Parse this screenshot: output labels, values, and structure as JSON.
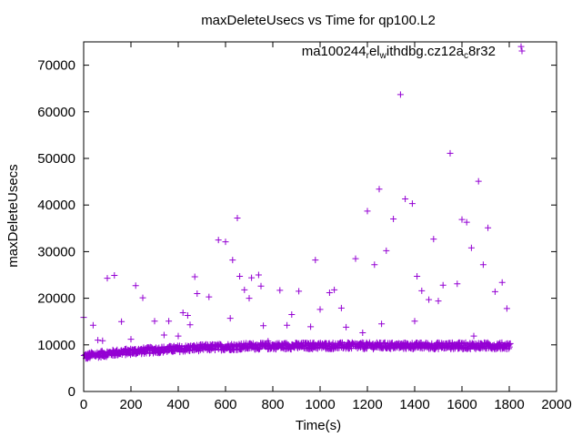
{
  "chart_data": {
    "type": "scatter",
    "title": "maxDeleteUsecs vs Time for qp100.L2",
    "xlabel": "Time(s)",
    "ylabel": "maxDeleteUsecs",
    "xlim": [
      0,
      2000
    ],
    "ylim": [
      0,
      75000
    ],
    "xticks": [
      0,
      200,
      400,
      600,
      800,
      1000,
      1200,
      1400,
      1600,
      1800,
      2000
    ],
    "yticks": [
      0,
      10000,
      20000,
      30000,
      40000,
      50000,
      60000,
      70000
    ],
    "grid": false,
    "marker": "+",
    "legend_position": "top-right",
    "series": [
      {
        "name": "ma100244_rel_withdbg.cz12a_c8r32",
        "legend_parts": [
          {
            "text": "ma100244",
            "sub": false
          },
          {
            "text": "r",
            "sub": true
          },
          {
            "text": "el",
            "sub": false
          },
          {
            "text": "w",
            "sub": true
          },
          {
            "text": "ithdbg.cz12a",
            "sub": false
          },
          {
            "text": "c",
            "sub": true
          },
          {
            "text": "8r32",
            "sub": false
          }
        ],
        "color": "#9400d3",
        "band": {
          "x_start": 0,
          "x_end": 1800,
          "x_step": 5,
          "profile": [
            [
              0,
              7500
            ],
            [
              50,
              7900
            ],
            [
              150,
              8400
            ],
            [
              300,
              8900
            ],
            [
              500,
              9400
            ],
            [
              700,
              9700
            ],
            [
              1000,
              9800
            ],
            [
              1800,
              9800
            ]
          ],
          "spread": 1400
        },
        "points": [
          [
            0,
            15900
          ],
          [
            40,
            14200
          ],
          [
            60,
            11000
          ],
          [
            80,
            10900
          ],
          [
            100,
            24300
          ],
          [
            130,
            24900
          ],
          [
            160,
            15000
          ],
          [
            200,
            11200
          ],
          [
            220,
            22700
          ],
          [
            250,
            20100
          ],
          [
            300,
            15100
          ],
          [
            340,
            12100
          ],
          [
            360,
            15100
          ],
          [
            400,
            11900
          ],
          [
            420,
            16900
          ],
          [
            440,
            16300
          ],
          [
            450,
            14300
          ],
          [
            470,
            24600
          ],
          [
            480,
            21000
          ],
          [
            530,
            20300
          ],
          [
            570,
            32500
          ],
          [
            600,
            32100
          ],
          [
            620,
            15700
          ],
          [
            630,
            28200
          ],
          [
            650,
            37200
          ],
          [
            660,
            24700
          ],
          [
            680,
            21800
          ],
          [
            700,
            20000
          ],
          [
            710,
            24400
          ],
          [
            740,
            25000
          ],
          [
            750,
            22600
          ],
          [
            760,
            14100
          ],
          [
            780,
            10800
          ],
          [
            830,
            21700
          ],
          [
            860,
            14200
          ],
          [
            880,
            16500
          ],
          [
            910,
            21500
          ],
          [
            960,
            13900
          ],
          [
            980,
            28200
          ],
          [
            1000,
            17600
          ],
          [
            1040,
            21200
          ],
          [
            1060,
            21800
          ],
          [
            1090,
            17900
          ],
          [
            1110,
            13800
          ],
          [
            1150,
            28500
          ],
          [
            1180,
            12600
          ],
          [
            1200,
            38700
          ],
          [
            1230,
            27200
          ],
          [
            1250,
            43400
          ],
          [
            1260,
            14500
          ],
          [
            1280,
            30200
          ],
          [
            1310,
            37000
          ],
          [
            1340,
            63700
          ],
          [
            1360,
            41300
          ],
          [
            1390,
            40300
          ],
          [
            1400,
            15100
          ],
          [
            1410,
            24700
          ],
          [
            1430,
            21600
          ],
          [
            1460,
            19700
          ],
          [
            1480,
            32700
          ],
          [
            1500,
            19400
          ],
          [
            1520,
            22800
          ],
          [
            1550,
            51100
          ],
          [
            1580,
            23100
          ],
          [
            1600,
            36900
          ],
          [
            1620,
            36300
          ],
          [
            1640,
            30800
          ],
          [
            1650,
            11900
          ],
          [
            1670,
            45100
          ],
          [
            1690,
            27200
          ],
          [
            1710,
            35100
          ],
          [
            1740,
            21400
          ],
          [
            1770,
            23400
          ],
          [
            1790,
            17800
          ],
          [
            1850,
            74000
          ]
        ]
      }
    ]
  }
}
